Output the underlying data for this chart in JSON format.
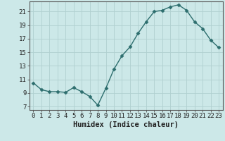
{
  "x": [
    0,
    1,
    2,
    3,
    4,
    5,
    6,
    7,
    8,
    9,
    10,
    11,
    12,
    13,
    14,
    15,
    16,
    17,
    18,
    19,
    20,
    21,
    22,
    23
  ],
  "y": [
    10.5,
    9.5,
    9.2,
    9.2,
    9.1,
    9.8,
    9.2,
    8.5,
    7.2,
    9.7,
    12.5,
    14.5,
    15.8,
    17.8,
    19.5,
    21.0,
    21.2,
    21.7,
    22.0,
    21.2,
    19.5,
    18.5,
    16.8,
    15.7
  ],
  "line_color": "#2d6e6e",
  "marker": "D",
  "markersize": 2.5,
  "linewidth": 1.0,
  "bg_color": "#cce8e8",
  "grid_color": "#b0d0d0",
  "xlabel": "Humidex (Indice chaleur)",
  "xlim": [
    -0.5,
    23.5
  ],
  "ylim": [
    6.5,
    22.5
  ],
  "yticks": [
    7,
    9,
    11,
    13,
    15,
    17,
    19,
    21
  ],
  "xticks": [
    0,
    1,
    2,
    3,
    4,
    5,
    6,
    7,
    8,
    9,
    10,
    11,
    12,
    13,
    14,
    15,
    16,
    17,
    18,
    19,
    20,
    21,
    22,
    23
  ],
  "xlabel_fontsize": 7.5,
  "tick_fontsize": 6.5,
  "spine_color": "#555555"
}
